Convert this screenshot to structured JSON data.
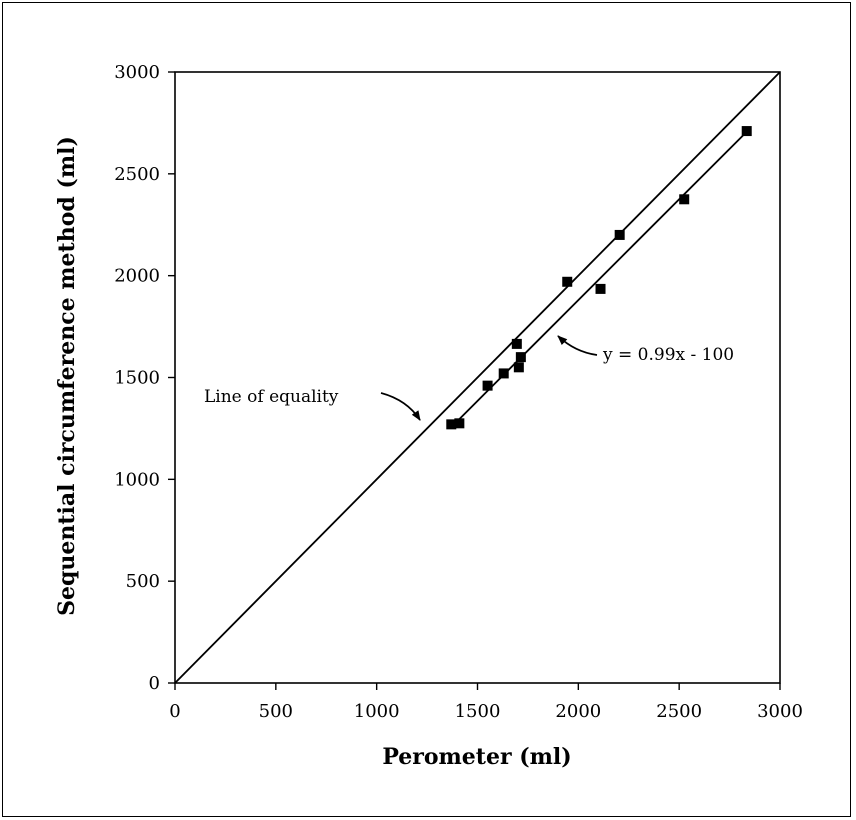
{
  "chart_data": {
    "type": "scatter",
    "xlabel": "Perometer (ml)",
    "ylabel": "Sequential circumference method (ml)",
    "xlim": [
      0,
      3000
    ],
    "ylim": [
      0,
      3000
    ],
    "xticks": [
      0,
      500,
      1000,
      1500,
      2000,
      2500,
      3000
    ],
    "yticks": [
      0,
      500,
      1000,
      1500,
      2000,
      2500,
      3000
    ],
    "grid": false,
    "points": [
      {
        "x": 1370,
        "y": 1270
      },
      {
        "x": 1410,
        "y": 1275
      },
      {
        "x": 1550,
        "y": 1460
      },
      {
        "x": 1630,
        "y": 1520
      },
      {
        "x": 1695,
        "y": 1665
      },
      {
        "x": 1705,
        "y": 1550
      },
      {
        "x": 1715,
        "y": 1600
      },
      {
        "x": 1945,
        "y": 1970
      },
      {
        "x": 2110,
        "y": 1935
      },
      {
        "x": 2205,
        "y": 2200
      },
      {
        "x": 2525,
        "y": 2375
      },
      {
        "x": 2835,
        "y": 2710
      }
    ],
    "lines": [
      {
        "label": "Line of equality",
        "slope": 1,
        "intercept": 0,
        "x_range": [
          0,
          3000
        ]
      },
      {
        "label": "y = 0.99x - 100",
        "slope": 0.99,
        "intercept": -100,
        "x_range": [
          1400,
          2840
        ]
      }
    ],
    "annotations": [
      "Line of equality",
      "y = 0.99x - 100"
    ]
  }
}
